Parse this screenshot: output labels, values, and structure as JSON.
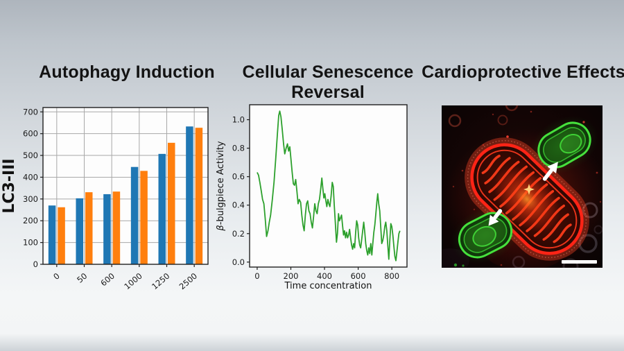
{
  "panels": [
    {
      "title": "Autophagy Induction"
    },
    {
      "title": "Cellular Senescence Reversal"
    },
    {
      "title": "Cardioprotective Effects"
    }
  ],
  "chart_data": [
    {
      "type": "bar",
      "title": "Autophagy Induction",
      "categories": [
        "0",
        "50",
        "600",
        "1000",
        "1250",
        "2500"
      ],
      "series": [
        {
          "name": "blue",
          "color": "#1f77b4",
          "values": [
            270,
            303,
            322,
            447,
            507,
            633
          ]
        },
        {
          "name": "orange",
          "color": "#ff7f0e",
          "values": [
            262,
            331,
            334,
            429,
            558,
            627
          ]
        }
      ],
      "xlabel": "",
      "ylabel": "LC3-III",
      "ylim": [
        0,
        720
      ],
      "yticks": [
        0,
        100,
        200,
        300,
        400,
        500,
        600,
        700
      ],
      "yticklabels": [
        "0",
        "100",
        "200",
        "300",
        "400",
        "500",
        "600",
        "700"
      ],
      "grid": true,
      "legend": "none"
    },
    {
      "type": "line",
      "title": "Cellular Senescence Reversal",
      "color": "#2ca02c",
      "xlabel": "Time concentration",
      "ylabel": "β-bulgpiece Activity",
      "xlim": [
        -45,
        890
      ],
      "ylim": [
        -0.035,
        1.105
      ],
      "xticks": [
        0,
        200,
        400,
        600,
        800
      ],
      "xticklabels": [
        "0",
        "200",
        "400",
        "600",
        "800"
      ],
      "yticks": [
        0.0,
        0.2,
        0.4,
        0.6,
        0.8,
        1.0
      ],
      "yticklabels": [
        "0.0",
        "0.2",
        "0.4",
        "0.6",
        "0.8",
        "1.0"
      ],
      "grid": false,
      "points": [
        [
          0,
          0.63
        ],
        [
          8,
          0.61
        ],
        [
          16,
          0.56
        ],
        [
          24,
          0.5
        ],
        [
          32,
          0.44
        ],
        [
          40,
          0.41
        ],
        [
          48,
          0.3
        ],
        [
          56,
          0.18
        ],
        [
          64,
          0.22
        ],
        [
          72,
          0.28
        ],
        [
          80,
          0.33
        ],
        [
          90,
          0.44
        ],
        [
          100,
          0.56
        ],
        [
          110,
          0.72
        ],
        [
          120,
          0.9
        ],
        [
          128,
          1.03
        ],
        [
          134,
          1.06
        ],
        [
          141,
          1.02
        ],
        [
          149,
          0.93
        ],
        [
          157,
          0.83
        ],
        [
          164,
          0.76
        ],
        [
          172,
          0.8
        ],
        [
          180,
          0.83
        ],
        [
          187,
          0.78
        ],
        [
          194,
          0.81
        ],
        [
          201,
          0.72
        ],
        [
          208,
          0.63
        ],
        [
          215,
          0.55
        ],
        [
          222,
          0.54
        ],
        [
          229,
          0.58
        ],
        [
          236,
          0.5
        ],
        [
          243,
          0.41
        ],
        [
          250,
          0.44
        ],
        [
          258,
          0.42
        ],
        [
          265,
          0.33
        ],
        [
          272,
          0.26
        ],
        [
          279,
          0.22
        ],
        [
          286,
          0.33
        ],
        [
          293,
          0.41
        ],
        [
          300,
          0.43
        ],
        [
          307,
          0.36
        ],
        [
          314,
          0.34
        ],
        [
          321,
          0.28
        ],
        [
          328,
          0.24
        ],
        [
          335,
          0.32
        ],
        [
          342,
          0.41
        ],
        [
          349,
          0.36
        ],
        [
          356,
          0.34
        ],
        [
          363,
          0.41
        ],
        [
          370,
          0.44
        ],
        [
          377,
          0.51
        ],
        [
          384,
          0.59
        ],
        [
          390,
          0.52
        ],
        [
          396,
          0.45
        ],
        [
          402,
          0.48
        ],
        [
          408,
          0.43
        ],
        [
          414,
          0.39
        ],
        [
          420,
          0.44
        ],
        [
          426,
          0.41
        ],
        [
          432,
          0.39
        ],
        [
          439,
          0.46
        ],
        [
          446,
          0.56
        ],
        [
          452,
          0.53
        ],
        [
          458,
          0.4
        ],
        [
          464,
          0.28
        ],
        [
          471,
          0.14
        ],
        [
          477,
          0.2
        ],
        [
          483,
          0.34
        ],
        [
          489,
          0.29
        ],
        [
          495,
          0.31
        ],
        [
          501,
          0.33
        ],
        [
          507,
          0.26
        ],
        [
          513,
          0.19
        ],
        [
          519,
          0.22
        ],
        [
          525,
          0.17
        ],
        [
          531,
          0.21
        ],
        [
          537,
          0.17
        ],
        [
          543,
          0.19
        ],
        [
          549,
          0.23
        ],
        [
          555,
          0.17
        ],
        [
          561,
          0.12
        ],
        [
          567,
          0.09
        ],
        [
          573,
          0.13
        ],
        [
          579,
          0.1
        ],
        [
          585,
          0.21
        ],
        [
          591,
          0.29
        ],
        [
          597,
          0.26
        ],
        [
          603,
          0.17
        ],
        [
          609,
          0.12
        ],
        [
          615,
          0.1
        ],
        [
          621,
          0.16
        ],
        [
          627,
          0.22
        ],
        [
          633,
          0.28
        ],
        [
          639,
          0.21
        ],
        [
          645,
          0.13
        ],
        [
          651,
          0.08
        ],
        [
          657,
          0.05
        ],
        [
          663,
          0.1
        ],
        [
          669,
          0.06
        ],
        [
          675,
          0.13
        ],
        [
          681,
          0.05
        ],
        [
          687,
          0.13
        ],
        [
          693,
          0.21
        ],
        [
          699,
          0.26
        ],
        [
          705,
          0.34
        ],
        [
          711,
          0.42
        ],
        [
          716,
          0.48
        ],
        [
          722,
          0.41
        ],
        [
          728,
          0.36
        ],
        [
          734,
          0.25
        ],
        [
          740,
          0.13
        ],
        [
          746,
          0.15
        ],
        [
          752,
          0.19
        ],
        [
          758,
          0.25
        ],
        [
          764,
          0.28
        ],
        [
          770,
          0.22
        ],
        [
          776,
          0.12
        ],
        [
          782,
          0.02
        ],
        [
          788,
          0.15
        ],
        [
          794,
          0.27
        ],
        [
          800,
          0.25
        ],
        [
          806,
          0.19
        ],
        [
          812,
          0.11
        ],
        [
          818,
          0.04
        ],
        [
          824,
          0.01
        ],
        [
          830,
          0.07
        ],
        [
          836,
          0.14
        ],
        [
          842,
          0.2
        ],
        [
          848,
          0.22
        ]
      ]
    },
    {
      "type": "image",
      "title": "Cardioprotective Effects",
      "description": "Fluorescence micrograph: red mitochondrion with cristae, two green cells, white arrows, white scale bar",
      "colors": {
        "background": "#0d0505",
        "mitochondrion": "#ff2416",
        "cristae": "#ff3d1a",
        "cell": "#46e03c",
        "arrow": "#ffffff",
        "scale_bar": "#ffffff",
        "spark": "#ffd27a"
      }
    }
  ]
}
